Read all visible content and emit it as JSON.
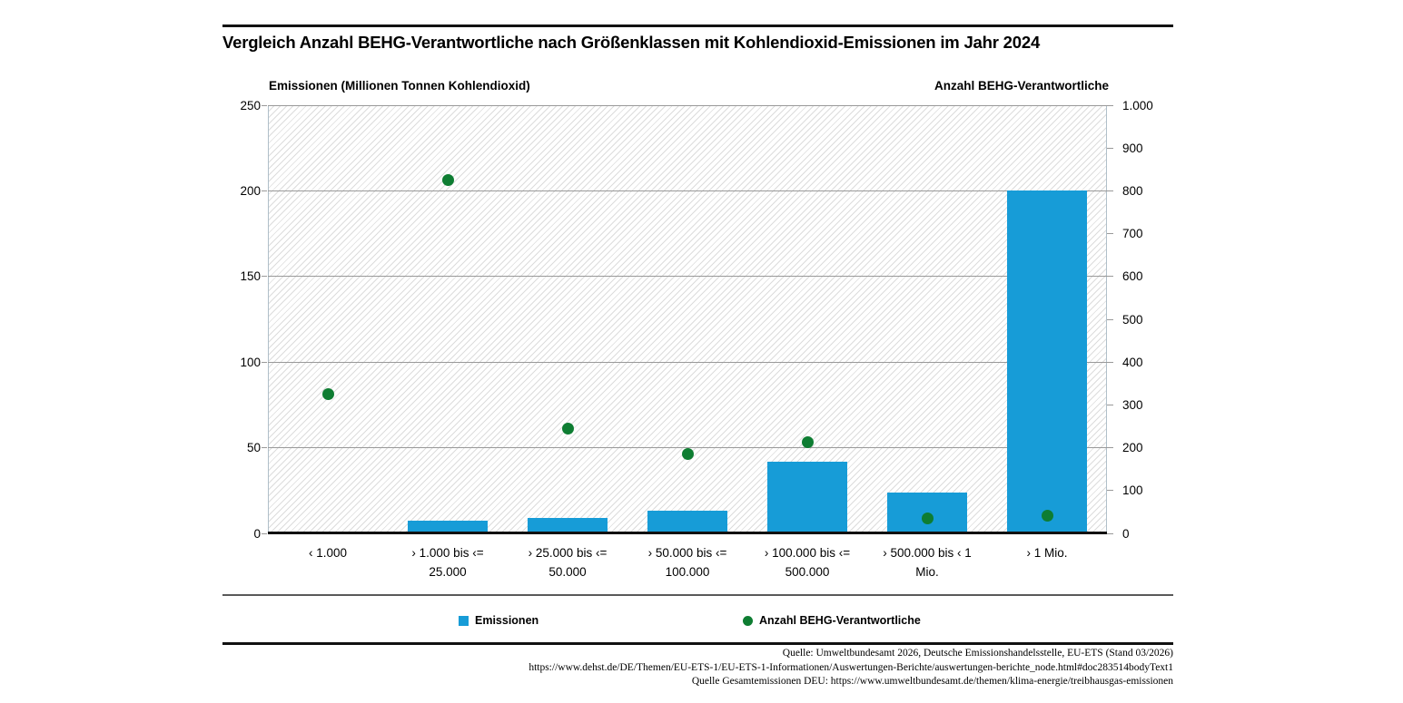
{
  "page": {
    "title": "Vergleich Anzahl BEHG-Verantwortliche nach Größenklassen mit Kohlendioxid-Emissionen im Jahr 2024"
  },
  "legend": {
    "emissions_label": "Emissionen",
    "count_label": "Anzahl BEHG-Verantwortliche"
  },
  "footer": {
    "line1": "Quelle: Umweltbundesamt 2026, Deutsche Emissionshandelsstelle, EU-ETS (Stand 03/2026)",
    "line2": "https://www.dehst.de/DE/Themen/EU-ETS-1/EU-ETS-1-Informationen/Auswertungen-Berichte/auswertungen-berichte_node.html#doc283514bodyText1",
    "line3": "Quelle Gesamtemissionen DEU: https://www.umweltbundesamt.de/themen/klima-energie/treibhausgas-emissionen"
  },
  "colors": {
    "bar_blue": "#179cd7",
    "dot_green": "#0e7d32",
    "gridline_gray": "#999999",
    "plot_border": "#b0bfc9",
    "rule_black": "#111111"
  },
  "chart_data": {
    "type": "bar",
    "title": "Vergleich Anzahl BEHG-Verantwortliche nach Größenklassen mit Kohlendioxid-Emissionen im Jahr 2024",
    "categories": [
      "‹ 1.000",
      "› 1.000 bis ‹= 25.000",
      "› 25.000 bis ‹= 50.000",
      "› 50.000 bis ‹= 100.000",
      "› 100.000 bis ‹= 500.000",
      "› 500.000 bis ‹ 1 Mio.",
      "› 1 Mio."
    ],
    "x_tick_display": [
      [
        "‹ 1.000"
      ],
      [
        "› 1.000 bis ‹=",
        "25.000"
      ],
      [
        "› 25.000 bis ‹=",
        "50.000"
      ],
      [
        "› 50.000 bis ‹=",
        "100.000"
      ],
      [
        "› 100.000 bis ‹=",
        "500.000"
      ],
      [
        "› 500.000 bis ‹ 1",
        "Mio."
      ],
      [
        "› 1 Mio."
      ]
    ],
    "series": [
      {
        "name": "Emissionen",
        "type": "bar",
        "axis": "left",
        "values": [
          0,
          7.5,
          9,
          13,
          42,
          24,
          200
        ]
      },
      {
        "name": "Anzahl BEHG-Verantwortliche",
        "type": "scatter",
        "axis": "right",
        "values": [
          325,
          825,
          245,
          185,
          213,
          35,
          41
        ]
      }
    ],
    "left_axis": {
      "label": "Emissionen (Millionen Tonnen Kohlendioxid)",
      "lim": [
        0,
        250
      ],
      "ticks": [
        0,
        50,
        100,
        150,
        200,
        250
      ],
      "tick_labels": [
        "0",
        "50",
        "100",
        "150",
        "200",
        "250"
      ]
    },
    "right_axis": {
      "label": "Anzahl BEHG-Verantwortliche",
      "lim": [
        0,
        1000
      ],
      "ticks": [
        0,
        100,
        200,
        300,
        400,
        500,
        600,
        700,
        800,
        900,
        1000
      ],
      "tick_labels": [
        "0",
        "100",
        "200",
        "300",
        "400",
        "500",
        "600",
        "700",
        "800",
        "900",
        "1.000"
      ]
    },
    "grid": "horizontal gridlines at left-axis ticks (every 50), hatched plot background",
    "legend_position": "bottom"
  }
}
